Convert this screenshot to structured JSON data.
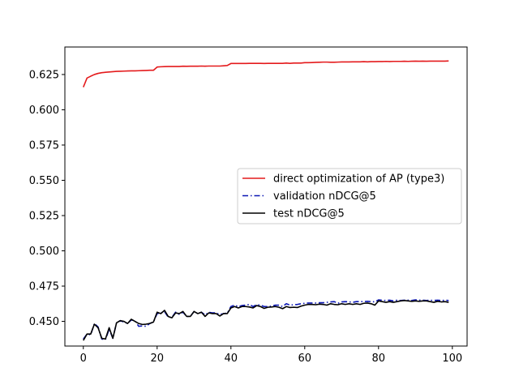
{
  "chart_data": {
    "type": "line",
    "title": "",
    "xlabel": "",
    "ylabel": "",
    "xlim": [
      -5,
      104
    ],
    "ylim": [
      0.4325,
      0.6445
    ],
    "grid": false,
    "legend_position": "center-right",
    "x_ticks": [
      0,
      20,
      40,
      60,
      80,
      100
    ],
    "x_tick_labels": [
      "0",
      "20",
      "40",
      "60",
      "80",
      "100"
    ],
    "y_ticks": [
      0.45,
      0.475,
      0.5,
      0.525,
      0.55,
      0.575,
      0.6,
      0.625
    ],
    "y_tick_labels": [
      "0.450",
      "0.475",
      "0.500",
      "0.525",
      "0.550",
      "0.575",
      "0.600",
      "0.625"
    ],
    "x": [
      0,
      1,
      2,
      3,
      4,
      5,
      6,
      7,
      8,
      9,
      10,
      11,
      12,
      13,
      14,
      15,
      16,
      17,
      18,
      19,
      20,
      21,
      22,
      23,
      24,
      25,
      26,
      27,
      28,
      29,
      30,
      31,
      32,
      33,
      34,
      35,
      36,
      37,
      38,
      39,
      40,
      41,
      42,
      43,
      44,
      45,
      46,
      47,
      48,
      49,
      50,
      51,
      52,
      53,
      54,
      55,
      56,
      57,
      58,
      59,
      60,
      61,
      62,
      63,
      64,
      65,
      66,
      67,
      68,
      69,
      70,
      71,
      72,
      73,
      74,
      75,
      76,
      77,
      78,
      79,
      80,
      81,
      82,
      83,
      84,
      85,
      86,
      87,
      88,
      89,
      90,
      91,
      92,
      93,
      94,
      95,
      96,
      97,
      98,
      99
    ],
    "series": [
      {
        "name": "direct optimization of AP (type3)",
        "color": "#e41a1c",
        "dash": "solid",
        "values": [
          0.616,
          0.6225,
          0.6238,
          0.625,
          0.6258,
          0.6263,
          0.6266,
          0.6268,
          0.627,
          0.6272,
          0.6273,
          0.6274,
          0.6275,
          0.6276,
          0.6276,
          0.6277,
          0.6278,
          0.6279,
          0.628,
          0.628,
          0.6303,
          0.6305,
          0.6306,
          0.6307,
          0.6307,
          0.6307,
          0.6307,
          0.6309,
          0.6308,
          0.6309,
          0.6309,
          0.6309,
          0.631,
          0.6309,
          0.631,
          0.631,
          0.631,
          0.631,
          0.6312,
          0.6314,
          0.6328,
          0.6328,
          0.6328,
          0.6328,
          0.6328,
          0.6329,
          0.6329,
          0.6329,
          0.6329,
          0.6328,
          0.6329,
          0.6329,
          0.6329,
          0.6329,
          0.6329,
          0.6331,
          0.6329,
          0.6331,
          0.6331,
          0.6331,
          0.6334,
          0.6334,
          0.6335,
          0.6336,
          0.6337,
          0.6338,
          0.6338,
          0.6337,
          0.6337,
          0.6338,
          0.6339,
          0.6339,
          0.6339,
          0.634,
          0.634,
          0.634,
          0.6341,
          0.634,
          0.6341,
          0.6341,
          0.6342,
          0.6342,
          0.6343,
          0.6342,
          0.6343,
          0.6343,
          0.6343,
          0.6344,
          0.6343,
          0.6344,
          0.6345,
          0.6344,
          0.6345,
          0.6344,
          0.6345,
          0.6345,
          0.6345,
          0.6345,
          0.6345,
          0.6346
        ]
      },
      {
        "name": "validation nDCG@5",
        "color": "#0a16b4",
        "dash": "dashdot",
        "values": [
          0.4375,
          0.441,
          0.4405,
          0.4485,
          0.446,
          0.4375,
          0.437,
          0.4445,
          0.438,
          0.449,
          0.4505,
          0.4495,
          0.4485,
          0.451,
          0.4505,
          0.4465,
          0.4468,
          0.4465,
          0.4485,
          0.4495,
          0.4555,
          0.456,
          0.457,
          0.453,
          0.4528,
          0.4565,
          0.455,
          0.4565,
          0.4535,
          0.4535,
          0.457,
          0.4555,
          0.4565,
          0.4545,
          0.4565,
          0.456,
          0.456,
          0.4548,
          0.4555,
          0.4558,
          0.4605,
          0.4615,
          0.4605,
          0.4612,
          0.4615,
          0.462,
          0.4605,
          0.4618,
          0.4615,
          0.4605,
          0.4605,
          0.4608,
          0.4615,
          0.4615,
          0.4605,
          0.4625,
          0.4615,
          0.4618,
          0.462,
          0.4625,
          0.4628,
          0.463,
          0.463,
          0.463,
          0.4632,
          0.4632,
          0.4635,
          0.4638,
          0.464,
          0.4628,
          0.4638,
          0.464,
          0.4638,
          0.4635,
          0.464,
          0.464,
          0.464,
          0.4642,
          0.464,
          0.4638,
          0.4652,
          0.465,
          0.4648,
          0.465,
          0.4645,
          0.465,
          0.4648,
          0.465,
          0.465,
          0.4648,
          0.4652,
          0.465,
          0.465,
          0.4648,
          0.465,
          0.4648,
          0.465,
          0.4648,
          0.465,
          0.4648
        ]
      },
      {
        "name": "test nDCG@5",
        "color": "#000000",
        "dash": "solid",
        "values": [
          0.4365,
          0.441,
          0.441,
          0.448,
          0.4455,
          0.438,
          0.4375,
          0.4455,
          0.438,
          0.449,
          0.4505,
          0.45,
          0.4485,
          0.4515,
          0.45,
          0.4485,
          0.4478,
          0.448,
          0.4485,
          0.4495,
          0.4565,
          0.4555,
          0.4578,
          0.4535,
          0.4525,
          0.456,
          0.4555,
          0.457,
          0.4535,
          0.4535,
          0.457,
          0.4555,
          0.4565,
          0.4535,
          0.456,
          0.4555,
          0.4555,
          0.4538,
          0.4555,
          0.4555,
          0.4595,
          0.4605,
          0.4595,
          0.4605,
          0.4605,
          0.4602,
          0.4595,
          0.4612,
          0.4605,
          0.4592,
          0.46,
          0.4602,
          0.4605,
          0.46,
          0.459,
          0.4605,
          0.4598,
          0.46,
          0.4598,
          0.4608,
          0.4615,
          0.462,
          0.462,
          0.4618,
          0.4622,
          0.462,
          0.4615,
          0.4625,
          0.462,
          0.4618,
          0.4625,
          0.462,
          0.4625,
          0.462,
          0.4625,
          0.462,
          0.4628,
          0.463,
          0.4625,
          0.4615,
          0.4645,
          0.464,
          0.4635,
          0.464,
          0.4635,
          0.464,
          0.4645,
          0.4648,
          0.4645,
          0.4642,
          0.4645,
          0.4642,
          0.4645,
          0.4645,
          0.464,
          0.4635,
          0.4642,
          0.4638,
          0.464,
          0.4635
        ]
      }
    ]
  }
}
